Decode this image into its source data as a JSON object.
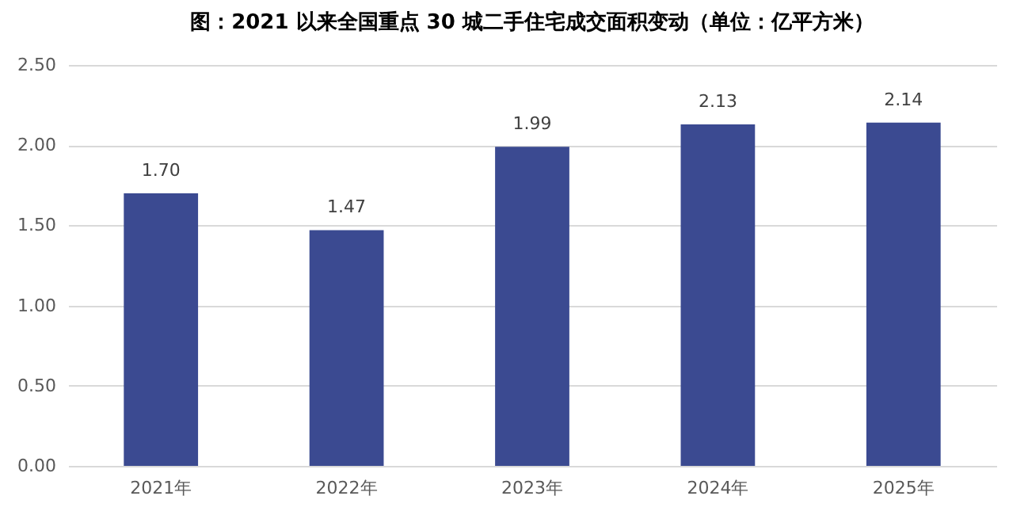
{
  "chart_data": {
    "type": "bar",
    "title": "图：2021 以来全国重点 30 城二手住宅成交面积变动（单位：亿平方米）",
    "categories": [
      "2021年",
      "2022年",
      "2023年",
      "2024年",
      "2025年"
    ],
    "values": [
      1.7,
      1.47,
      1.99,
      2.13,
      2.14
    ],
    "color": "#3b4a91",
    "value_labels": [
      "1.70",
      "1.47",
      "1.99",
      "2.13",
      "2.14"
    ],
    "ylim": [
      0,
      2.5
    ],
    "yticks": [
      {
        "value": 0,
        "label": "0.00"
      },
      {
        "value": 0.5,
        "label": "0.50"
      },
      {
        "value": 1,
        "label": "1.00"
      },
      {
        "value": 1.5,
        "label": "1.50"
      },
      {
        "value": 2,
        "label": "2.00"
      },
      {
        "value": 2.5,
        "label": "2.50"
      }
    ],
    "grid": "y"
  }
}
